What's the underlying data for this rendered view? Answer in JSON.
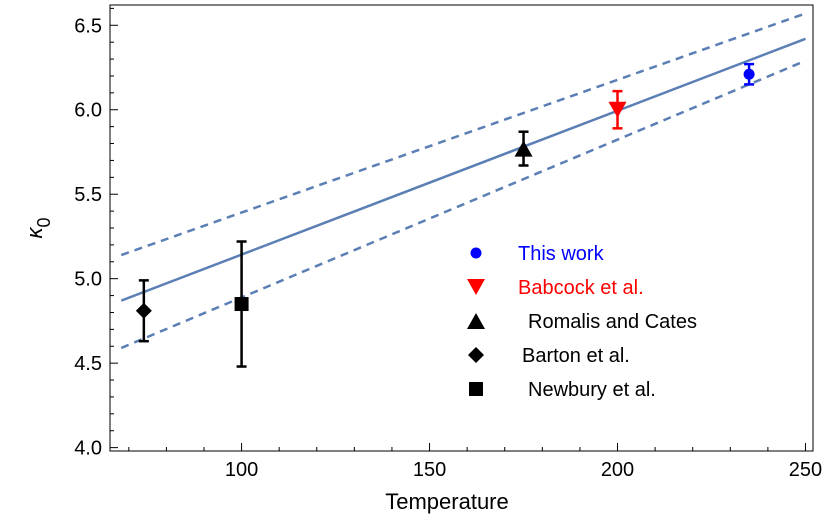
{
  "chart_data": {
    "type": "scatter",
    "xlabel": "Temperature",
    "ylabel": "κ",
    "ylabel_sub": "0",
    "xlim": [
      65,
      252
    ],
    "ylim": [
      3.98,
      6.62
    ],
    "xticks": [
      100,
      150,
      200,
      250
    ],
    "xtick_labels": [
      "100",
      "150",
      "200",
      "250"
    ],
    "yticks": [
      4.0,
      4.5,
      5.0,
      5.5,
      6.0,
      6.5
    ],
    "ytick_labels": [
      "4.0",
      "4.5",
      "5.0",
      "5.5",
      "6.0",
      "6.5"
    ],
    "grid": false,
    "legend_position": "center-right",
    "series": [
      {
        "name": "This work",
        "marker": "circle",
        "color": "#0000ff",
        "x": [
          235
        ],
        "y": [
          6.21
        ],
        "err": [
          0.06
        ]
      },
      {
        "name": "Babcock et al.",
        "marker": "triangle-down",
        "color": "#ff0000",
        "x": [
          200
        ],
        "y": [
          6.0
        ],
        "err": [
          0.11
        ]
      },
      {
        "name": "Romalis and Cates",
        "marker": "triangle-up",
        "color": "#000000",
        "x": [
          175
        ],
        "y": [
          5.77
        ],
        "err": [
          0.1
        ]
      },
      {
        "name": "Barton et al.",
        "marker": "diamond",
        "color": "#000000",
        "x": [
          74
        ],
        "y": [
          4.81
        ],
        "err": [
          0.18
        ]
      },
      {
        "name": "Newbury et al.",
        "marker": "square",
        "color": "#000000",
        "x": [
          100
        ],
        "y": [
          4.85
        ],
        "err": [
          0.37
        ]
      }
    ],
    "fit": {
      "color": "#5b7fb5",
      "center": {
        "x": [
          68,
          250
        ],
        "y": [
          4.87,
          6.42
        ]
      },
      "upper": {
        "x": [
          68,
          250
        ],
        "y": [
          5.14,
          6.57
        ]
      },
      "lower": {
        "x": [
          68,
          250
        ],
        "y": [
          4.59,
          6.29
        ]
      }
    }
  }
}
